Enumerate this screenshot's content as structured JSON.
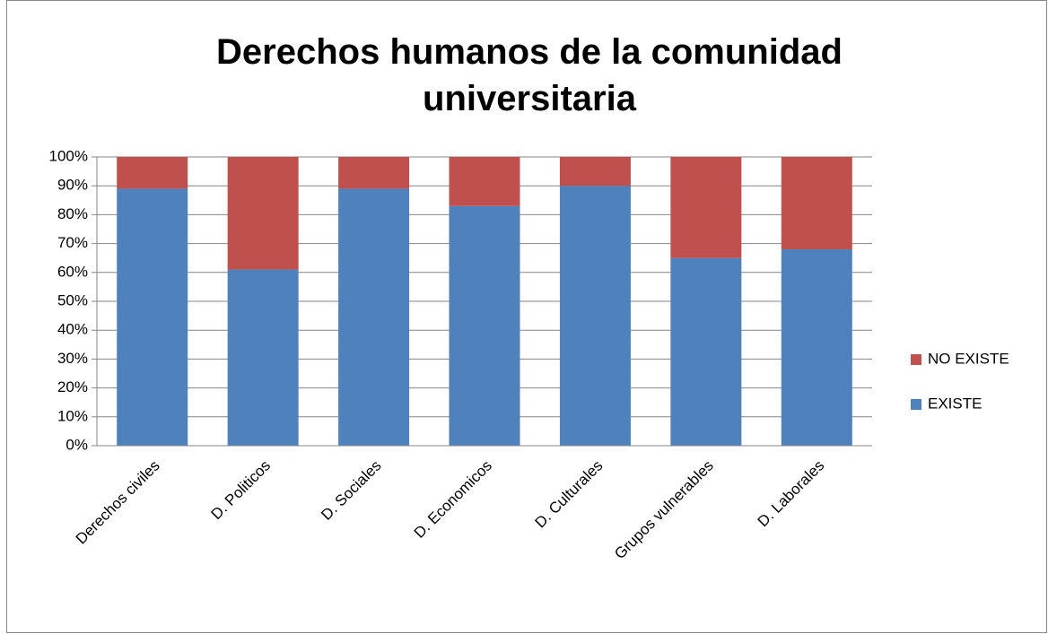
{
  "chart_data": {
    "type": "stacked_bar",
    "title": "Derechos humanos de la comunidad universitaria",
    "categories": [
      "Derechos civiles",
      "D. Politicos",
      "D. Sociales",
      "D. Economicos",
      "D. Culturales",
      "Grupos vulnerables",
      "D. Laborales"
    ],
    "series": [
      {
        "name": "EXISTE",
        "color": "#4f81bd",
        "values": [
          89,
          61,
          89,
          83,
          90,
          65,
          68
        ]
      },
      {
        "name": "NO EXISTE",
        "color": "#c0504d",
        "values": [
          11,
          39,
          11,
          17,
          10,
          35,
          32
        ]
      }
    ],
    "ylim": [
      0,
      100
    ],
    "yticks": [
      {
        "value": 0,
        "label": "0%"
      },
      {
        "value": 10,
        "label": "10%"
      },
      {
        "value": 20,
        "label": "20%"
      },
      {
        "value": 30,
        "label": "30%"
      },
      {
        "value": 40,
        "label": "40%"
      },
      {
        "value": 50,
        "label": "50%"
      },
      {
        "value": 60,
        "label": "60%"
      },
      {
        "value": 70,
        "label": "70%"
      },
      {
        "value": 80,
        "label": "80%"
      },
      {
        "value": 90,
        "label": "90%"
      },
      {
        "value": 100,
        "label": "100%"
      }
    ],
    "grid": true,
    "legend": "right"
  }
}
